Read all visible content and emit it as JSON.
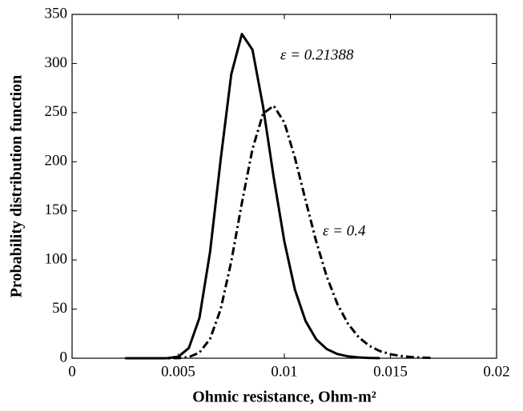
{
  "chart_data": {
    "type": "line",
    "xlabel": "Ohmic resistance, Ohm-m²",
    "ylabel": "Probability distribution function",
    "x": [
      0.0025,
      0.003,
      0.0035,
      0.004,
      0.0045,
      0.005,
      0.0055,
      0.006,
      0.0065,
      0.007,
      0.0075,
      0.008,
      0.0085,
      0.009,
      0.0095,
      0.01,
      0.0105,
      0.011,
      0.0115,
      0.012,
      0.0125,
      0.013,
      0.0135,
      0.014,
      0.0145,
      0.015,
      0.0155,
      0.016,
      0.0165,
      0.017
    ],
    "series": [
      {
        "color": "#000000",
        "dash": "solid",
        "values": [
          0,
          0,
          0,
          0.003,
          0.11,
          1.5,
          10.3,
          41,
          108,
          202,
          289,
          330,
          314,
          256,
          184,
          119,
          69.7,
          37.9,
          19.3,
          9.3,
          4.3,
          1.9,
          0.8,
          0.3,
          0.1,
          null,
          null,
          null,
          null,
          null
        ]
      },
      {
        "color": "#000000",
        "dash": "dashdot",
        "values": [
          null,
          null,
          null,
          0,
          0.01,
          0.14,
          1.1,
          5.7,
          19.7,
          49.8,
          98.5,
          158,
          213,
          249,
          257,
          240,
          204,
          161,
          119,
          83.1,
          55.2,
          35.1,
          21.4,
          12.7,
          7.3,
          4.1,
          2.2,
          1.2,
          0.6,
          0.3
        ]
      }
    ],
    "annotations": [
      "ε = 0.21388",
      "ε = 0.4"
    ],
    "xlim": [
      0,
      0.02
    ],
    "xticks": [
      0,
      0.005,
      0.01,
      0.015,
      0.02
    ],
    "ylim": [
      0,
      350
    ],
    "yticks": [
      0,
      50,
      100,
      150,
      200,
      250,
      300,
      350
    ],
    "grid": false
  }
}
